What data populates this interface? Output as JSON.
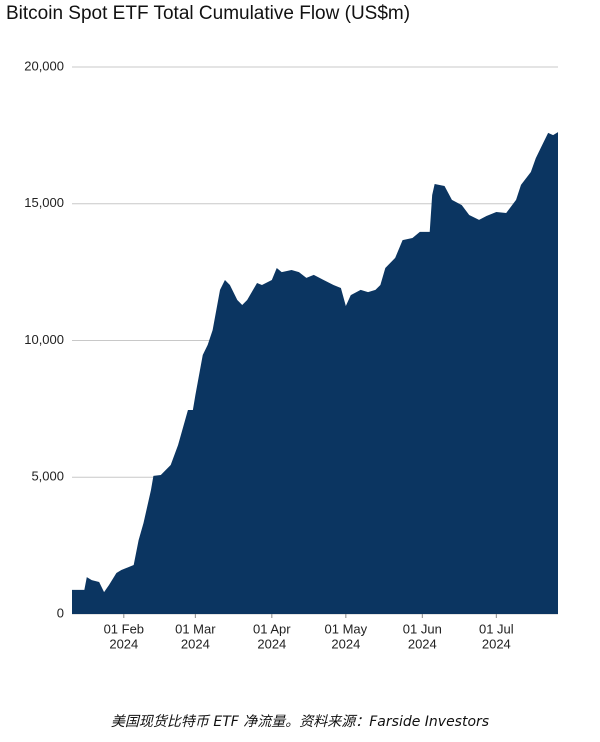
{
  "chart_data": {
    "type": "area",
    "title": "Bitcoin Spot ETF Total Cumulative Flow (US$m)",
    "caption": "美国现货比特币 ETF 净流量。资料来源：Farside Investors",
    "color": "#0b3561",
    "grid": true,
    "xlim": [
      "2024-01-11",
      "2024-07-26"
    ],
    "xticks": [
      {
        "value": "2024-02-01",
        "label": [
          "01 Feb",
          "2024"
        ]
      },
      {
        "value": "2024-03-01",
        "label": [
          "01 Mar",
          "2024"
        ]
      },
      {
        "value": "2024-04-01",
        "label": [
          "01 Apr",
          "2024"
        ]
      },
      {
        "value": "2024-05-01",
        "label": [
          "01 May",
          "2024"
        ]
      },
      {
        "value": "2024-06-01",
        "label": [
          "01 Jun",
          "2024"
        ]
      },
      {
        "value": "2024-07-01",
        "label": [
          "01 Jul",
          "2024"
        ]
      }
    ],
    "ylim": [
      0,
      20000
    ],
    "yticks": [
      0,
      {
        "value": 5000,
        "label": "5,000"
      },
      {
        "value": 10000,
        "label": "10,000"
      },
      {
        "value": 15000,
        "label": "15,000"
      },
      {
        "value": 20000,
        "label": "20,000"
      }
    ],
    "x": [
      "2024-01-11",
      "2024-01-16",
      "2024-01-17",
      "2024-01-19",
      "2024-01-22",
      "2024-01-24",
      "2024-01-26",
      "2024-01-29",
      "2024-01-31",
      "2024-02-02",
      "2024-02-05",
      "2024-02-07",
      "2024-02-09",
      "2024-02-12",
      "2024-02-13",
      "2024-02-16",
      "2024-02-20",
      "2024-02-23",
      "2024-02-27",
      "2024-02-29",
      "2024-03-01",
      "2024-03-04",
      "2024-03-06",
      "2024-03-08",
      "2024-03-11",
      "2024-03-13",
      "2024-03-15",
      "2024-03-18",
      "2024-03-20",
      "2024-03-22",
      "2024-03-26",
      "2024-03-28",
      "2024-04-01",
      "2024-04-03",
      "2024-04-05",
      "2024-04-09",
      "2024-04-12",
      "2024-04-15",
      "2024-04-18",
      "2024-04-22",
      "2024-04-26",
      "2024-04-29",
      "2024-05-01",
      "2024-05-03",
      "2024-05-07",
      "2024-05-10",
      "2024-05-13",
      "2024-05-15",
      "2024-05-17",
      "2024-05-21",
      "2024-05-24",
      "2024-05-28",
      "2024-05-31",
      "2024-06-04",
      "2024-06-05",
      "2024-06-06",
      "2024-06-10",
      "2024-06-13",
      "2024-06-17",
      "2024-06-20",
      "2024-06-24",
      "2024-06-27",
      "2024-07-01",
      "2024-07-05",
      "2024-07-09",
      "2024-07-11",
      "2024-07-15",
      "2024-07-17",
      "2024-07-19",
      "2024-07-22",
      "2024-07-24",
      "2024-07-26"
    ],
    "values": [
      880,
      880,
      1350,
      1240,
      1170,
      800,
      1060,
      1500,
      1610,
      1680,
      1790,
      2700,
      3330,
      4530,
      5050,
      5080,
      5450,
      6180,
      7460,
      7460,
      8000,
      9470,
      9840,
      10380,
      11850,
      12210,
      12030,
      11480,
      11300,
      11480,
      12100,
      12030,
      12210,
      12650,
      12500,
      12580,
      12500,
      12290,
      12400,
      12210,
      12030,
      11920,
      11260,
      11660,
      11850,
      11770,
      11850,
      12030,
      12650,
      13020,
      13670,
      13750,
      13970,
      13970,
      15320,
      15720,
      15650,
      15140,
      14950,
      14590,
      14410,
      14550,
      14700,
      14660,
      15140,
      15690,
      16160,
      16670,
      17040,
      17590,
      17510,
      17620
    ]
  }
}
